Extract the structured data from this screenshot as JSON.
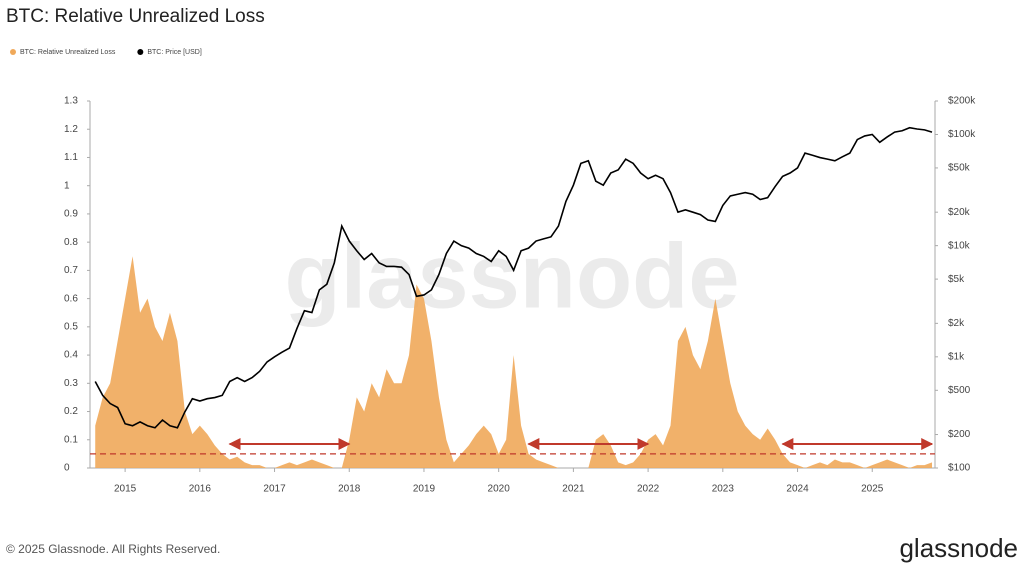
{
  "chart_data": {
    "type": "area-line",
    "title": "BTC: Relative Unrealized Loss",
    "watermark": "glassnode",
    "footer": "© 2025 Glassnode. All Rights Reserved.",
    "logo": "glassnode",
    "x": [
      2014.6,
      2014.7,
      2014.8,
      2014.9,
      2015.0,
      2015.1,
      2015.2,
      2015.3,
      2015.4,
      2015.5,
      2015.6,
      2015.7,
      2015.8,
      2015.9,
      2016.0,
      2016.1,
      2016.2,
      2016.3,
      2016.4,
      2016.5,
      2016.6,
      2016.7,
      2016.8,
      2016.9,
      2017.0,
      2017.1,
      2017.2,
      2017.3,
      2017.4,
      2017.5,
      2017.6,
      2017.7,
      2017.8,
      2017.9,
      2018.0,
      2018.1,
      2018.2,
      2018.3,
      2018.4,
      2018.5,
      2018.6,
      2018.7,
      2018.8,
      2018.9,
      2019.0,
      2019.1,
      2019.2,
      2019.3,
      2019.4,
      2019.5,
      2019.6,
      2019.7,
      2019.8,
      2019.9,
      2020.0,
      2020.1,
      2020.2,
      2020.3,
      2020.4,
      2020.5,
      2020.6,
      2020.7,
      2020.8,
      2020.9,
      2021.0,
      2021.1,
      2021.2,
      2021.3,
      2021.4,
      2021.5,
      2021.6,
      2021.7,
      2021.8,
      2021.9,
      2022.0,
      2022.1,
      2022.2,
      2022.3,
      2022.4,
      2022.5,
      2022.6,
      2022.7,
      2022.8,
      2022.9,
      2023.0,
      2023.1,
      2023.2,
      2023.3,
      2023.4,
      2023.5,
      2023.6,
      2023.7,
      2023.8,
      2023.9,
      2024.0,
      2024.1,
      2024.2,
      2024.3,
      2024.4,
      2024.5,
      2024.6,
      2024.7,
      2024.8,
      2024.9,
      2025.0,
      2025.1,
      2025.2,
      2025.3,
      2025.4,
      2025.5,
      2025.6,
      2025.7,
      2025.8
    ],
    "series": [
      {
        "name": "BTC: Relative Unrealized Loss",
        "color": "#f0a95a",
        "axis": "y",
        "kind": "area",
        "values": [
          0.15,
          0.25,
          0.3,
          0.45,
          0.6,
          0.75,
          0.55,
          0.6,
          0.5,
          0.45,
          0.55,
          0.45,
          0.2,
          0.12,
          0.15,
          0.12,
          0.08,
          0.05,
          0.03,
          0.04,
          0.02,
          0.01,
          0.01,
          0,
          0,
          0.01,
          0.02,
          0.01,
          0.02,
          0.03,
          0.02,
          0.01,
          0,
          0,
          0.1,
          0.25,
          0.2,
          0.3,
          0.25,
          0.35,
          0.3,
          0.3,
          0.4,
          0.65,
          0.6,
          0.45,
          0.25,
          0.1,
          0.02,
          0.05,
          0.08,
          0.12,
          0.15,
          0.12,
          0.05,
          0.1,
          0.4,
          0.15,
          0.05,
          0.03,
          0.02,
          0.01,
          0,
          0,
          0,
          0,
          0,
          0.1,
          0.12,
          0.08,
          0.02,
          0.01,
          0.02,
          0.05,
          0.1,
          0.12,
          0.08,
          0.15,
          0.45,
          0.5,
          0.4,
          0.35,
          0.45,
          0.6,
          0.45,
          0.3,
          0.2,
          0.15,
          0.12,
          0.1,
          0.14,
          0.1,
          0.05,
          0.02,
          0.01,
          0,
          0.01,
          0.02,
          0.01,
          0.03,
          0.02,
          0.02,
          0.01,
          0,
          0.01,
          0.02,
          0.03,
          0.02,
          0.01,
          0,
          0.01,
          0.01,
          0.02
        ]
      },
      {
        "name": "BTC: Price [USD]",
        "color": "#000000",
        "axis": "y2",
        "kind": "line",
        "values": [
          600,
          450,
          380,
          350,
          250,
          240,
          260,
          240,
          230,
          270,
          240,
          230,
          320,
          420,
          400,
          420,
          430,
          450,
          600,
          650,
          600,
          650,
          740,
          900,
          1000,
          1100,
          1200,
          1800,
          2600,
          2500,
          4000,
          4500,
          7000,
          15000,
          11000,
          9000,
          7500,
          8500,
          7000,
          6500,
          6500,
          6400,
          5500,
          3500,
          3600,
          4000,
          5500,
          8500,
          11000,
          10000,
          9500,
          8500,
          8000,
          7200,
          9000,
          8000,
          6000,
          9000,
          9500,
          11000,
          11500,
          12000,
          15000,
          25000,
          35000,
          55000,
          58000,
          38000,
          35000,
          45000,
          48000,
          60000,
          55000,
          45000,
          40000,
          43000,
          40000,
          30000,
          20000,
          21000,
          20000,
          19000,
          17000,
          16500,
          23000,
          28000,
          29000,
          30000,
          29000,
          26000,
          27000,
          34000,
          42000,
          45000,
          50000,
          68000,
          65000,
          62000,
          60000,
          58000,
          63000,
          68000,
          90000,
          97000,
          100000,
          85000,
          95000,
          105000,
          108000,
          115000,
          112000,
          110000,
          105000
        ]
      }
    ],
    "xlim": [
      2014.53,
      2025.84
    ],
    "xticks": [
      2015,
      2016,
      2017,
      2018,
      2019,
      2020,
      2021,
      2022,
      2023,
      2024,
      2025
    ],
    "ylim": [
      0,
      1.3
    ],
    "yticks": [
      0,
      0.1,
      0.2,
      0.3,
      0.4,
      0.5,
      0.6,
      0.7,
      0.8,
      0.9,
      1,
      1.1,
      1.2,
      1.3
    ],
    "y2lim": [
      100,
      200000
    ],
    "y2log": true,
    "y2ticks": [
      {
        "value": 100,
        "label": "$100"
      },
      {
        "value": 200,
        "label": "$200"
      },
      {
        "value": 500,
        "label": "$500"
      },
      {
        "value": 1000,
        "label": "$1k"
      },
      {
        "value": 2000,
        "label": "$2k"
      },
      {
        "value": 5000,
        "label": "$5k"
      },
      {
        "value": 10000,
        "label": "$10k"
      },
      {
        "value": 20000,
        "label": "$20k"
      },
      {
        "value": 50000,
        "label": "$50k"
      },
      {
        "value": 100000,
        "label": "$100k"
      },
      {
        "value": 200000,
        "label": "$200k"
      }
    ],
    "annotations": {
      "threshold": 0.05,
      "color": "#c0392b",
      "ranges": [
        {
          "x": [
            2016.4,
            2018.0
          ],
          "y": 0.085
        },
        {
          "x": [
            2020.4,
            2022.0
          ],
          "y": 0.085
        },
        {
          "x": [
            2023.8,
            2025.8
          ],
          "y": 0.085
        }
      ]
    }
  }
}
